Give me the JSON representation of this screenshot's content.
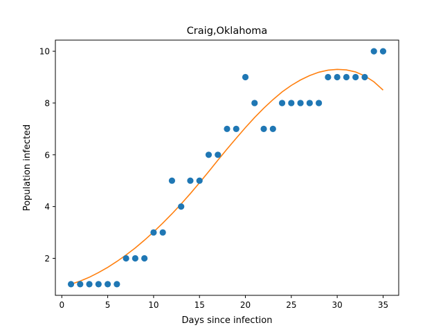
{
  "chart_data": {
    "type": "scatter",
    "title": "Craig,Oklahoma",
    "xlabel": "Days since infection",
    "ylabel": "Population infected",
    "xlim": [
      -0.7,
      36.7
    ],
    "ylim": [
      0.57,
      10.43
    ],
    "xticks": [
      0,
      5,
      10,
      15,
      20,
      25,
      30,
      35
    ],
    "yticks": [
      2,
      4,
      6,
      8,
      10
    ],
    "grid": false,
    "colors": {
      "points": "#1f77b4",
      "fit": "#ff7f0e"
    },
    "series": [
      {
        "kind": "scatter",
        "x": [
          1,
          2,
          3,
          4,
          5,
          6,
          7,
          8,
          9,
          10,
          11,
          12,
          13,
          14,
          15,
          16,
          17,
          18,
          19,
          20,
          21,
          22,
          23,
          24,
          25,
          26,
          27,
          28,
          29,
          30,
          31,
          32,
          33,
          34,
          35
        ],
        "y": [
          1,
          1,
          1,
          1,
          1,
          1,
          2,
          2,
          2,
          3,
          3,
          5,
          4,
          5,
          5,
          6,
          6,
          7,
          7,
          9,
          8,
          7,
          7,
          8,
          8,
          8,
          8,
          8,
          9,
          9,
          9,
          9,
          9,
          10,
          10
        ]
      },
      {
        "kind": "line",
        "x": [
          1,
          2,
          3,
          4,
          5,
          6,
          7,
          8,
          9,
          10,
          11,
          12,
          13,
          14,
          15,
          16,
          17,
          18,
          19,
          20,
          21,
          22,
          23,
          24,
          25,
          26,
          27,
          28,
          29,
          30,
          31,
          32,
          33,
          34,
          35
        ],
        "y": [
          1.0,
          1.12,
          1.27,
          1.45,
          1.65,
          1.88,
          2.13,
          2.4,
          2.7,
          3.02,
          3.36,
          3.72,
          4.1,
          4.5,
          4.92,
          5.35,
          5.79,
          6.22,
          6.64,
          7.05,
          7.44,
          7.8,
          8.13,
          8.43,
          8.68,
          8.89,
          9.06,
          9.19,
          9.27,
          9.3,
          9.28,
          9.2,
          9.05,
          8.82,
          8.5
        ]
      }
    ]
  }
}
